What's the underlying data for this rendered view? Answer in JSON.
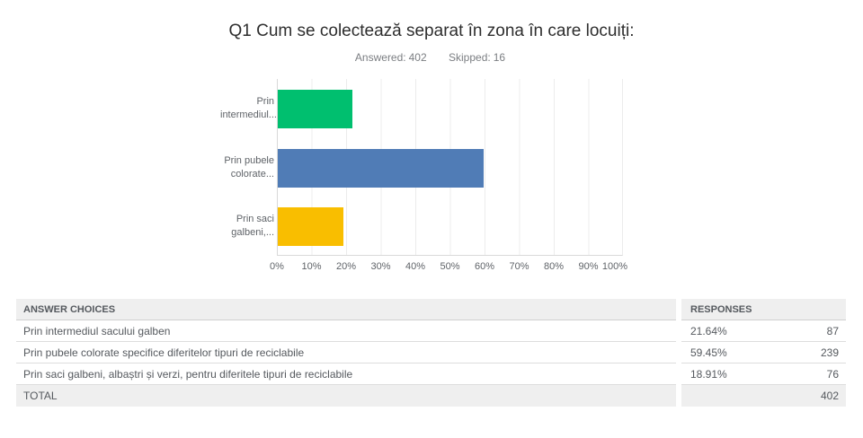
{
  "page": {
    "title": "Q1 Cum se colectează separat în zona în care locuiți:",
    "answered_label": "Answered:",
    "answered_value": "402",
    "skipped_label": "Skipped:",
    "skipped_value": "16"
  },
  "chart_data": {
    "type": "bar",
    "orientation": "horizontal",
    "title": "Q1 Cum se colectează separat în zona în care locuiți:",
    "categories": [
      "Prin intermediul sacului galben",
      "Prin pubele colorate specifice diferitelor tipuri de reciclabile",
      "Prin saci galbeni, albaștri și verzi, pentru diferitele tipuri de reciclabile"
    ],
    "category_lines": [
      [
        "Prin",
        "intermediul..."
      ],
      [
        "Prin pubele",
        "colorate..."
      ],
      [
        "Prin saci",
        "galbeni,..."
      ]
    ],
    "values": [
      21.64,
      59.45,
      18.91
    ],
    "counts": [
      87,
      239,
      76
    ],
    "colors": [
      "#00BF6F",
      "#507CB6",
      "#F9BE00"
    ],
    "x_ticks": [
      "0%",
      "10%",
      "20%",
      "30%",
      "40%",
      "50%",
      "60%",
      "70%",
      "80%",
      "90%",
      "100%"
    ],
    "xlim": [
      0,
      100
    ],
    "grid": true,
    "legend": "none"
  },
  "table": {
    "header": {
      "answer_choices": "ANSWER CHOICES",
      "responses": "RESPONSES"
    },
    "rows": [
      {
        "label": "Prin intermediul sacului galben",
        "percent": "21.64%",
        "count": "87"
      },
      {
        "label": "Prin pubele colorate specifice diferitelor tipuri de reciclabile",
        "percent": "59.45%",
        "count": "239"
      },
      {
        "label": "Prin saci galbeni, albaștri și verzi, pentru diferitele tipuri de reciclabile",
        "percent": "18.91%",
        "count": "76"
      }
    ],
    "total": {
      "label": "TOTAL",
      "count": "402"
    }
  }
}
